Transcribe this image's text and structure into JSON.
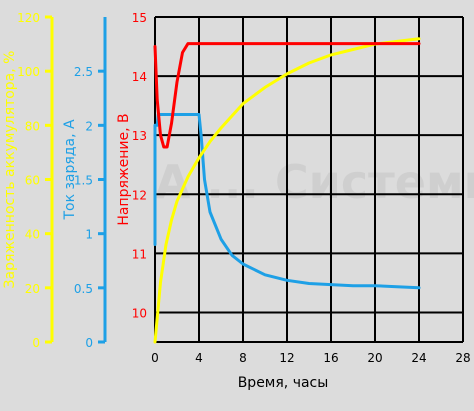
{
  "colors": {
    "background": "#dcdcdc",
    "grid": "#000000",
    "charge_level": "#ffff00",
    "current": "#1ea0e6",
    "voltage": "#ff0000",
    "axis_text": "#000000",
    "watermark": "#c8c8c8"
  },
  "watermark": "А ... Системы",
  "chart_data": {
    "type": "line",
    "xlabel": "Время, часы",
    "x_ticks": [
      0,
      4,
      8,
      12,
      16,
      20,
      24,
      28
    ],
    "xlim": [
      0,
      28
    ],
    "grid": true,
    "axes": [
      {
        "id": "charge",
        "label": "Заряженность аккумулятора, %",
        "ticks": [
          0,
          20,
          40,
          60,
          80,
          100,
          120
        ],
        "range": [
          0,
          120
        ]
      },
      {
        "id": "current",
        "label": "Ток заряда, А",
        "ticks": [
          "0",
          "0.5",
          "1",
          "1.5",
          "2",
          "2.5"
        ],
        "range": [
          0,
          3
        ]
      },
      {
        "id": "voltage",
        "label": "Напряжение, В",
        "ticks": [
          10,
          11,
          12,
          13,
          14,
          15
        ],
        "range": [
          9.5,
          15
        ]
      }
    ],
    "series": [
      {
        "axis": "charge",
        "x": [
          0,
          0.5,
          1,
          1.5,
          2,
          3,
          4,
          5,
          6,
          8,
          10,
          12,
          14,
          16,
          18,
          20,
          22,
          24
        ],
        "values": [
          0,
          22,
          36,
          45,
          52,
          61,
          68,
          74,
          79,
          88,
          94,
          99,
          103,
          106,
          108,
          110,
          111,
          112
        ]
      },
      {
        "axis": "current",
        "x": [
          0,
          0,
          0.2,
          0.3,
          4,
          4.2,
          4.5,
          5,
          6,
          7,
          8,
          10,
          12,
          14,
          16,
          18,
          20,
          22,
          24
        ],
        "values": [
          0.9,
          2.0,
          2.0,
          2.1,
          2.1,
          1.9,
          1.5,
          1.2,
          0.95,
          0.8,
          0.72,
          0.62,
          0.57,
          0.54,
          0.53,
          0.52,
          0.52,
          0.51,
          0.5
        ]
      },
      {
        "axis": "voltage",
        "x": [
          0,
          0.2,
          0.5,
          0.8,
          1.1,
          1.5,
          2,
          2.5,
          3,
          3.5,
          5,
          8,
          12,
          16,
          20,
          24
        ],
        "values": [
          14.5,
          13.6,
          13.0,
          12.8,
          12.8,
          13.2,
          13.9,
          14.4,
          14.55,
          14.55,
          14.55,
          14.55,
          14.55,
          14.55,
          14.55,
          14.55
        ]
      }
    ]
  }
}
